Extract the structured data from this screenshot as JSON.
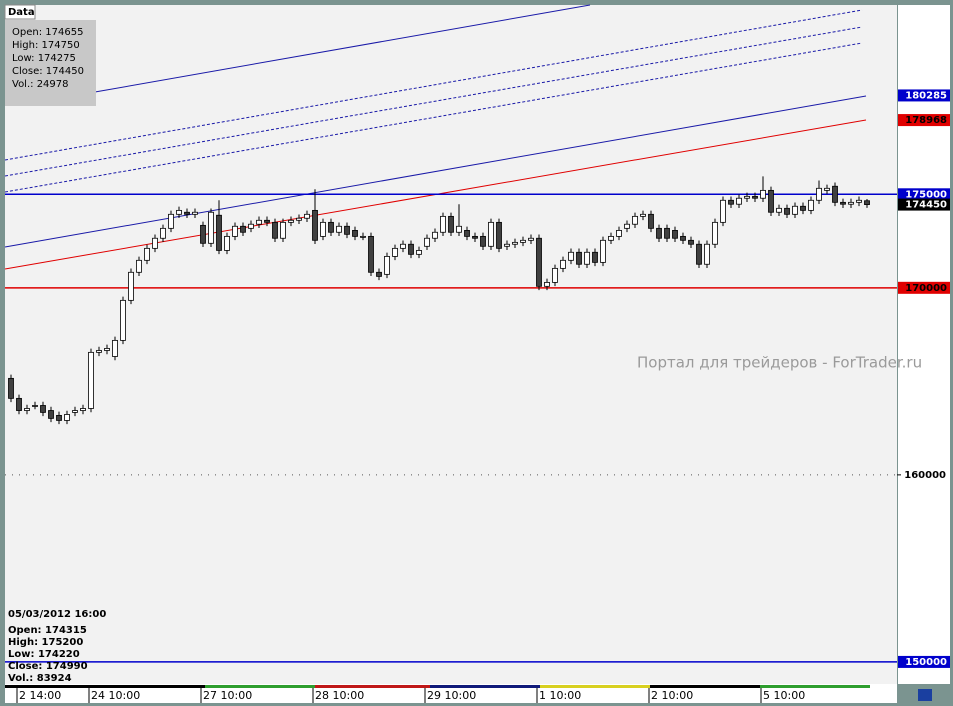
{
  "chart_data": {
    "type": "candlestick",
    "watermark": "Портал для трейдеров - ForTrader.ru",
    "categories": [
      null,
      "2 14:00",
      null,
      null,
      null,
      null,
      null,
      null,
      null,
      null,
      "24 10:00",
      null,
      null,
      null,
      null,
      null,
      null,
      null,
      null,
      null,
      null,
      null,
      null,
      null,
      "27 10:00",
      null,
      null,
      null,
      null,
      null,
      null,
      null,
      null,
      null,
      null,
      null,
      null,
      null,
      "28 10:00",
      null,
      null,
      null,
      null,
      null,
      null,
      null,
      null,
      null,
      null,
      null,
      null,
      null,
      "29 10:00",
      null,
      null,
      null,
      null,
      null,
      null,
      null,
      null,
      null,
      null,
      null,
      null,
      null,
      "1 10:00",
      null,
      null,
      null,
      null,
      null,
      null,
      null,
      null,
      null,
      null,
      null,
      null,
      null,
      "2 10:00",
      null,
      null,
      null,
      null,
      null,
      null,
      null,
      null,
      null,
      null,
      null,
      null,
      null,
      "5 10:00",
      null,
      null,
      null,
      null,
      null,
      null,
      null,
      null,
      null,
      null,
      null,
      null,
      null
    ],
    "open": [
      165160,
      164090,
      163440,
      163710,
      163710,
      163440,
      163180,
      162910,
      163340,
      163440,
      163550,
      166550,
      166650,
      166330,
      167190,
      169330,
      170830,
      171470,
      172110,
      172650,
      173180,
      173930,
      174040,
      173930,
      173340,
      172380,
      173880,
      172000,
      172750,
      173290,
      173180,
      173400,
      173610,
      173500,
      172650,
      173500,
      173610,
      173720,
      174140,
      172750,
      173500,
      172970,
      173290,
      173070,
      172750,
      172750,
      170830,
      170720,
      171680,
      172110,
      172330,
      171790,
      172220,
      172650,
      172970,
      173820,
      172970,
      173070,
      172750,
      172750,
      172220,
      173500,
      172220,
      172330,
      172430,
      172540,
      172650,
      170080,
      170290,
      171040,
      171470,
      171900,
      171260,
      171900,
      171360,
      172540,
      172750,
      173180,
      173400,
      173820,
      173930,
      173180,
      173180,
      173070,
      172750,
      172540,
      172330,
      171260,
      172330,
      173500,
      174680,
      174470,
      174790,
      174890,
      174790,
      175210,
      174040,
      174250,
      173930,
      174360,
      174140,
      174680,
      175210,
      175430,
      174570,
      174470,
      174570,
      174655
    ],
    "high": [
      165360,
      164290,
      163750,
      163910,
      163910,
      163640,
      163380,
      163430,
      163640,
      163750,
      166750,
      166850,
      166960,
      167390,
      169530,
      171030,
      171670,
      172310,
      172850,
      173380,
      174130,
      174340,
      174240,
      174240,
      173540,
      174240,
      174680,
      172950,
      173490,
      173490,
      173600,
      173810,
      173810,
      173700,
      173700,
      173810,
      173920,
      174130,
      175270,
      173700,
      173700,
      173490,
      173490,
      173270,
      172950,
      172950,
      171030,
      171880,
      172310,
      172530,
      172530,
      172200,
      172850,
      173170,
      174020,
      174020,
      174470,
      173270,
      172950,
      172950,
      173700,
      173700,
      172530,
      172630,
      172740,
      172850,
      172850,
      170490,
      171240,
      171670,
      172100,
      172100,
      172100,
      172100,
      172740,
      172950,
      173270,
      173600,
      174020,
      174130,
      174130,
      173380,
      173380,
      173270,
      172950,
      172740,
      172530,
      172530,
      173700,
      174880,
      174880,
      174990,
      175090,
      175090,
      175960,
      175410,
      174450,
      174450,
      174560,
      174560,
      174880,
      175740,
      175520,
      175630,
      174770,
      174770,
      174880,
      174750
    ],
    "low": [
      163890,
      163240,
      163240,
      163510,
      163140,
      162820,
      162710,
      162710,
      163140,
      163240,
      163350,
      166350,
      166450,
      166130,
      166990,
      169130,
      170630,
      171270,
      171910,
      172450,
      172980,
      173730,
      173730,
      173730,
      172180,
      172180,
      171800,
      171800,
      172550,
      172770,
      172980,
      173200,
      173300,
      172450,
      172450,
      173300,
      173410,
      173520,
      172340,
      172550,
      172770,
      172770,
      172660,
      172550,
      172550,
      170630,
      170410,
      170520,
      171480,
      171910,
      171590,
      171590,
      172020,
      172450,
      172770,
      172770,
      172770,
      172550,
      172450,
      172020,
      172020,
      171910,
      172020,
      172130,
      172230,
      172340,
      169880,
      169880,
      170090,
      170840,
      171270,
      171060,
      171060,
      171160,
      171160,
      172340,
      172550,
      172980,
      173200,
      173620,
      172980,
      172450,
      172450,
      172450,
      172340,
      172130,
      171060,
      171060,
      172130,
      173300,
      174270,
      174270,
      174590,
      174590,
      174590,
      173840,
      173840,
      173730,
      173730,
      173940,
      173940,
      174480,
      175010,
      174370,
      174270,
      174270,
      174370,
      174275
    ],
    "close": [
      164090,
      163440,
      163550,
      163710,
      163340,
      163020,
      162910,
      163230,
      163440,
      163550,
      166550,
      166650,
      166760,
      167190,
      169330,
      170830,
      171470,
      172110,
      172650,
      173180,
      173930,
      174140,
      173930,
      174040,
      172380,
      174040,
      172000,
      172750,
      173290,
      172970,
      173400,
      173610,
      173500,
      172650,
      173500,
      173610,
      173720,
      173930,
      172540,
      173500,
      172970,
      173290,
      172860,
      172750,
      172750,
      170830,
      170610,
      171680,
      172110,
      172330,
      171790,
      172000,
      172650,
      172970,
      173820,
      172970,
      173290,
      172750,
      172650,
      172220,
      173500,
      172110,
      172330,
      172430,
      172540,
      172650,
      170080,
      170290,
      171040,
      171470,
      171900,
      171260,
      171900,
      171360,
      172540,
      172750,
      173070,
      173400,
      173820,
      173930,
      173180,
      172650,
      172650,
      172650,
      172540,
      172330,
      171260,
      172330,
      173500,
      174680,
      174470,
      174790,
      174890,
      174790,
      175210,
      174040,
      174250,
      173930,
      174360,
      174140,
      174680,
      175320,
      175320,
      174570,
      174470,
      174570,
      174680,
      174450
    ],
    "up_color": "#ffffff",
    "down_color": "#404040",
    "ylim": [
      148820,
      185120
    ],
    "yticks": [
      160000
    ],
    "grid": true,
    "price_labels": [
      {
        "value": 180285,
        "color": "#0000cc",
        "text_color": "#ffffff",
        "line": false
      },
      {
        "value": 178968,
        "color": "#e00000",
        "text_color": "#000000",
        "line": false
      },
      {
        "value": 175000,
        "color": "#0000cc",
        "text_color": "#ffffff",
        "line": true
      },
      {
        "value": 174450,
        "color": "#000000",
        "text_color": "#ffffff",
        "line": false
      },
      {
        "value": 170000,
        "color": "#e00000",
        "text_color": "#000000",
        "line": true
      },
      {
        "value": 150000,
        "color": "#0000cc",
        "text_color": "#ffffff",
        "line": true
      }
    ]
  },
  "data_window": {
    "title": "Data",
    "rows": [
      "Open: 174655",
      "High: 174750",
      "Low: 174275",
      "Close: 174450",
      "Vol.: 24978"
    ]
  },
  "cursor_info": {
    "time": "05/03/2012 16:00",
    "rows": [
      "Open: 174315",
      "High: 175200",
      "Low: 174220",
      "Close: 174990",
      "Vol.: 83924"
    ]
  }
}
